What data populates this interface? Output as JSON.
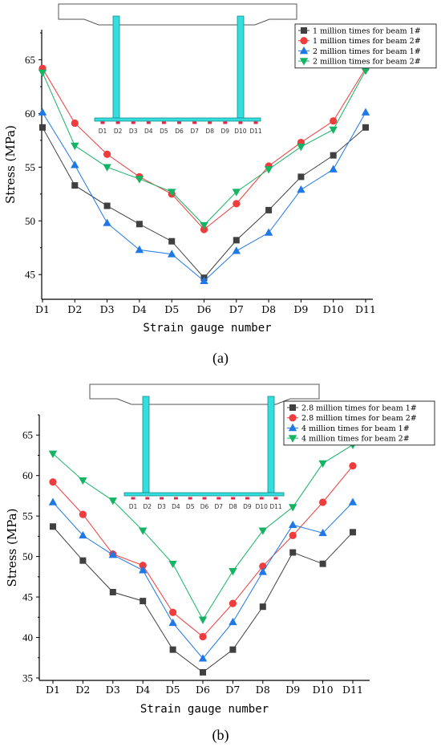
{
  "chart_data": [
    {
      "type": "line",
      "panel_label": "(a)",
      "categories": [
        "D1",
        "D2",
        "D3",
        "D4",
        "D5",
        "D6",
        "D7",
        "D8",
        "D9",
        "D10",
        "D11"
      ],
      "xlabel": "Strain gauge number",
      "ylabel": "Stress (MPa)",
      "ylim": [
        42.7,
        67.8
      ],
      "yticks": [
        45,
        50,
        55,
        60,
        65
      ],
      "legend_position": "top-right",
      "inset_gauge_labels": [
        "D1",
        "D2",
        "D3",
        "D4",
        "D5",
        "D6",
        "D7",
        "D8",
        "D9",
        "D10",
        "D11"
      ],
      "series": [
        {
          "name": "1 million times for beam 1#",
          "marker": "square",
          "color": "#404040",
          "values": [
            58.7,
            53.3,
            51.4,
            49.7,
            48.1,
            44.7,
            48.2,
            51.0,
            54.1,
            56.1,
            58.7
          ]
        },
        {
          "name": "1 million times for beam 2#",
          "marker": "circle",
          "color": "#f03c3c",
          "values": [
            64.2,
            59.1,
            56.2,
            54.1,
            52.5,
            49.2,
            51.6,
            55.1,
            57.3,
            59.3,
            64.2
          ]
        },
        {
          "name": "2 million times for beam 1#",
          "marker": "triangle-up",
          "color": "#1e78e6",
          "values": [
            60.1,
            55.2,
            49.8,
            47.3,
            46.9,
            44.4,
            47.2,
            48.9,
            52.9,
            54.8,
            60.1
          ]
        },
        {
          "name": "2 million times for beam 2#",
          "marker": "triangle-down",
          "color": "#14b464",
          "values": [
            63.8,
            57.0,
            55.0,
            53.9,
            52.7,
            49.6,
            52.7,
            54.8,
            56.9,
            58.5,
            64.0
          ]
        }
      ]
    },
    {
      "type": "line",
      "panel_label": "(b)",
      "categories": [
        "D1",
        "D2",
        "D3",
        "D4",
        "D5",
        "D6",
        "D7",
        "D8",
        "D9",
        "D10",
        "D11"
      ],
      "xlabel": "Strain gauge number",
      "ylabel": "Stress (MPa)",
      "ylim": [
        34.7,
        67.5
      ],
      "yticks": [
        35,
        40,
        45,
        50,
        55,
        60,
        65
      ],
      "legend_position": "top-right",
      "inset_gauge_labels": [
        "D1",
        "D2",
        "D3",
        "D4",
        "D5",
        "D6",
        "D7",
        "D8",
        "D9",
        "D10",
        "D11"
      ],
      "series": [
        {
          "name": "2.8 million times for beam 1#",
          "marker": "square",
          "color": "#404040",
          "values": [
            53.7,
            49.5,
            45.6,
            44.5,
            38.5,
            35.7,
            38.5,
            43.8,
            50.5,
            49.1,
            53.0
          ]
        },
        {
          "name": "2.8 million times for beam 2#",
          "marker": "circle",
          "color": "#f03c3c",
          "values": [
            59.2,
            55.2,
            50.3,
            48.9,
            43.1,
            40.1,
            44.2,
            48.8,
            52.6,
            56.7,
            61.2
          ]
        },
        {
          "name": "4 million times for beam 1#",
          "marker": "triangle-up",
          "color": "#1e78e6",
          "values": [
            56.7,
            52.6,
            50.2,
            48.3,
            41.8,
            37.4,
            41.9,
            48.1,
            53.9,
            52.9,
            56.7
          ]
        },
        {
          "name": "4 million times for beam 2#",
          "marker": "triangle-down",
          "color": "#14b464",
          "values": [
            62.7,
            59.4,
            56.9,
            53.2,
            49.1,
            42.2,
            48.2,
            53.2,
            56.1,
            61.5,
            63.8
          ]
        }
      ]
    }
  ]
}
